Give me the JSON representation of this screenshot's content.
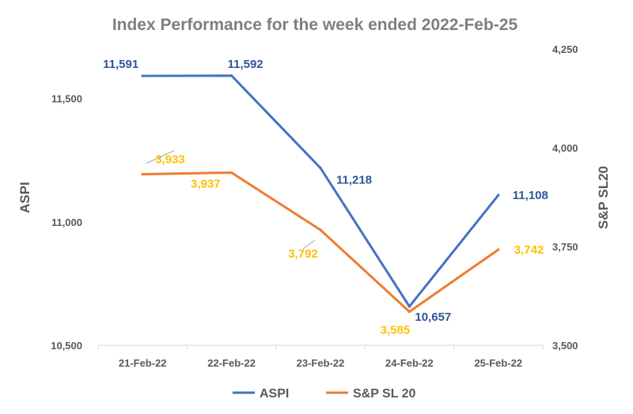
{
  "chart_data": {
    "type": "line",
    "title": "Index Performance for the week ended 2022-Feb-25",
    "categories": [
      "21-Feb-22",
      "22-Feb-22",
      "23-Feb-22",
      "24-Feb-22",
      "25-Feb-22"
    ],
    "series": [
      {
        "name": "ASPI",
        "axis": "left",
        "color": "#4472c4",
        "label_color": "#2f5597",
        "values": [
          11591,
          11592,
          11218,
          10657,
          11108
        ],
        "labels": [
          "11,591",
          "11,592",
          "11,218",
          "10,657",
          "11,108"
        ]
      },
      {
        "name": "S&P SL 20",
        "axis": "right",
        "color": "#ed7d31",
        "label_color": "#ffc000",
        "values": [
          3933,
          3937,
          3792,
          3585,
          3742
        ],
        "labels": [
          "3,933",
          "3,937",
          "3,792",
          "3,585",
          "3,742"
        ]
      }
    ],
    "y_left": {
      "label": "ASPI",
      "ylim": [
        10500,
        11700
      ],
      "ticks": [
        10500,
        11000,
        11500
      ],
      "tick_labels": [
        "10,500",
        "11,000",
        "11,500"
      ]
    },
    "y_right": {
      "label": "S&P SL20",
      "ylim": [
        3500,
        4250
      ],
      "ticks": [
        3500,
        3750,
        4000,
        4250
      ],
      "tick_labels": [
        "3,500",
        "3,750",
        "4,000",
        "4,250"
      ]
    },
    "grid": false,
    "legend_position": "bottom"
  }
}
